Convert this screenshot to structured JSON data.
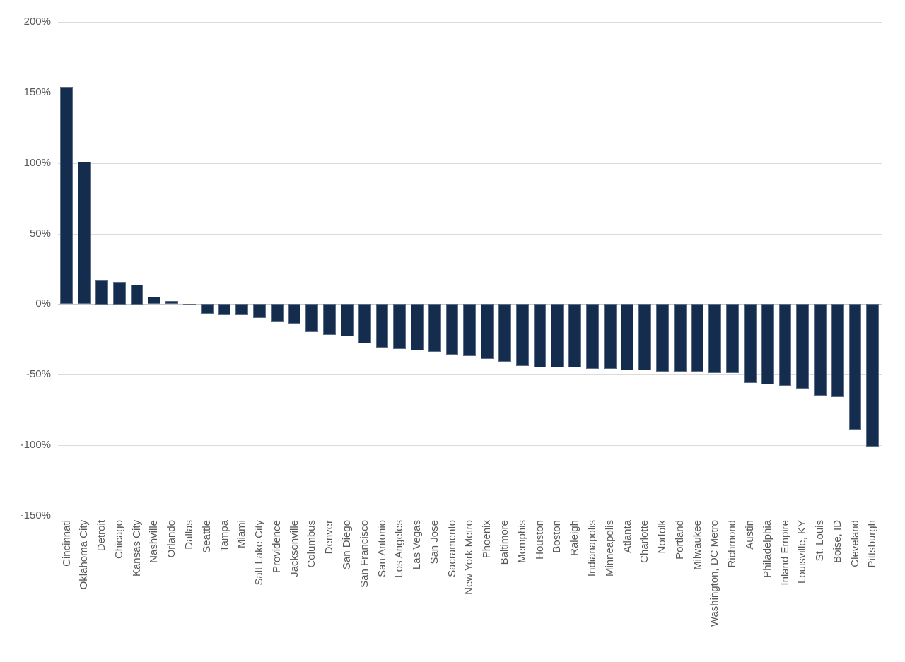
{
  "chart_data": {
    "type": "bar",
    "title": "",
    "xlabel": "",
    "ylabel": "",
    "unit": "%",
    "ylim": [
      -150,
      200
    ],
    "yticks": [
      200,
      150,
      100,
      50,
      0,
      -50,
      -100,
      -150
    ],
    "ytick_labels": [
      "200%",
      "150%",
      "100%",
      "50%",
      "0%",
      "-50%",
      "-100%",
      "-150%"
    ],
    "grid": true,
    "legend": "none",
    "categories": [
      "Cincinnati",
      "Oklahoma City",
      "Detroit",
      "Chicago",
      "Kansas City",
      "Nashville",
      "Orlando",
      "Dallas",
      "Seattle",
      "Tampa",
      "Miami",
      "Salt Lake City",
      "Providence",
      "Jacksonville",
      "Columbus",
      "Denver",
      "San Diego",
      "San Francisco",
      "San Antonio",
      "Los Angeles",
      "Las Vegas",
      "San Jose",
      "Sacramento",
      "New York Metro",
      "Phoenix",
      "Baltimore",
      "Memphis",
      "Houston",
      "Boston",
      "Raleigh",
      "Indianapolis",
      "Minneapolis",
      "Atlanta",
      "Charlotte",
      "Norfolk",
      "Portland",
      "Milwaukee",
      "Washington, DC Metro",
      "Richmond",
      "Austin",
      "Philadelphia",
      "Inland Empire",
      "Louisville, KY",
      "St. Louis",
      "Boise, ID",
      "Cleveland",
      "Pittsburgh"
    ],
    "values": [
      154,
      101,
      17,
      16,
      14,
      5,
      2,
      -1,
      -7,
      -8,
      -8,
      -10,
      -13,
      -14,
      -20,
      -22,
      -23,
      -28,
      -31,
      -32,
      -33,
      -34,
      -36,
      -37,
      -39,
      -41,
      -44,
      -45,
      -45,
      -45,
      -46,
      -46,
      -47,
      -47,
      -48,
      -48,
      -48,
      -49,
      -49,
      -56,
      -57,
      -58,
      -60,
      -65,
      -66,
      -89,
      -101
    ],
    "colors": {
      "bar_fill": "#142D4E",
      "bar_edge": "#98A3B4",
      "gridline": "#DBDBDB",
      "zero_axis": "#C8C8C8",
      "tick_label": "#595959",
      "background": "#FFFFFF"
    }
  }
}
